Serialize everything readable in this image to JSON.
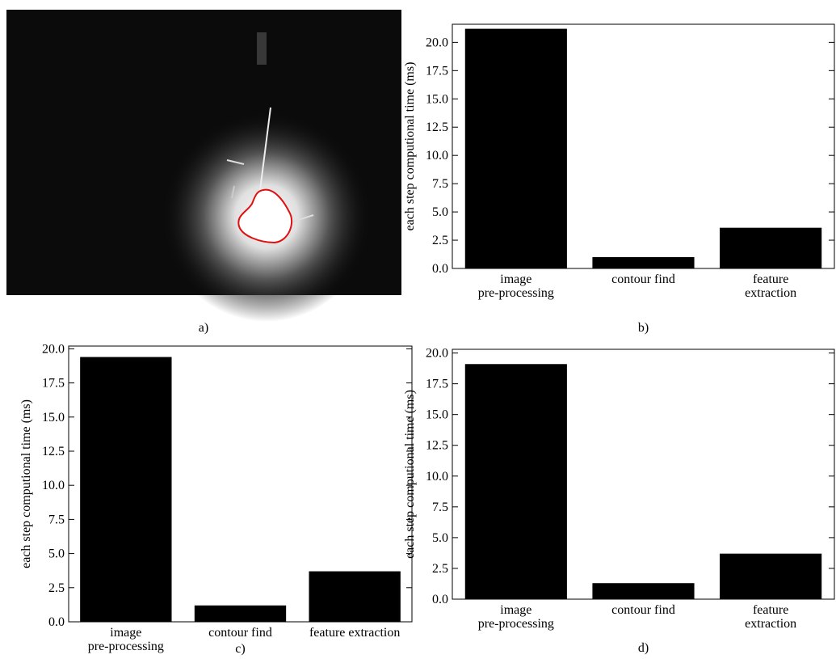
{
  "image_panel": {
    "caption": "a)"
  },
  "chart_data": [
    {
      "type": "bar",
      "caption": "b)",
      "y_label": "each step computional time (ms)",
      "categories": [
        "image\npre-processing",
        "contour find",
        "feature extraction"
      ],
      "values": [
        21.2,
        1.0,
        3.6
      ],
      "color": "#000000",
      "ylim": [
        0,
        21.6
      ],
      "yticks": [
        {
          "value": 0,
          "label": "0.0"
        },
        {
          "value": 2.5,
          "label": "2.5"
        },
        {
          "value": 5,
          "label": "5.0"
        },
        {
          "value": 7.5,
          "label": "7.5"
        },
        {
          "value": 10,
          "label": "10.0"
        },
        {
          "value": 12.5,
          "label": "12.5"
        },
        {
          "value": 15,
          "label": "15.0"
        },
        {
          "value": 17.5,
          "label": "17.5"
        },
        {
          "value": 20,
          "label": "20.0"
        }
      ]
    },
    {
      "type": "bar",
      "caption": "c)",
      "y_label": "each step computional time (ms)",
      "categories": [
        "image\npre-processing",
        "contour find",
        "feature extraction"
      ],
      "values": [
        19.4,
        1.2,
        3.7
      ],
      "color": "#000000",
      "ylim": [
        0,
        20.2
      ],
      "yticks": [
        {
          "value": 0,
          "label": "0.0"
        },
        {
          "value": 2.5,
          "label": "2.5"
        },
        {
          "value": 5,
          "label": "5.0"
        },
        {
          "value": 7.5,
          "label": "7.5"
        },
        {
          "value": 10,
          "label": "10.0"
        },
        {
          "value": 12.5,
          "label": "12.5"
        },
        {
          "value": 15,
          "label": "15.0"
        },
        {
          "value": 17.5,
          "label": "17.5"
        },
        {
          "value": 20,
          "label": "20.0"
        }
      ]
    },
    {
      "type": "bar",
      "caption": "d)",
      "y_label": "each step computional time (ms)",
      "categories": [
        "image\npre-processing",
        "contour find",
        "feature extraction"
      ],
      "values": [
        19.1,
        1.3,
        3.7
      ],
      "color": "#000000",
      "ylim": [
        0,
        20.3
      ],
      "yticks": [
        {
          "value": 0,
          "label": "0.0"
        },
        {
          "value": 2.5,
          "label": "2.5"
        },
        {
          "value": 5,
          "label": "5.0"
        },
        {
          "value": 7.5,
          "label": "7.5"
        },
        {
          "value": 10,
          "label": "10.0"
        },
        {
          "value": 12.5,
          "label": "12.5"
        },
        {
          "value": 15,
          "label": "15.0"
        },
        {
          "value": 17.5,
          "label": "17.5"
        },
        {
          "value": 20,
          "label": "20.0"
        }
      ]
    }
  ]
}
